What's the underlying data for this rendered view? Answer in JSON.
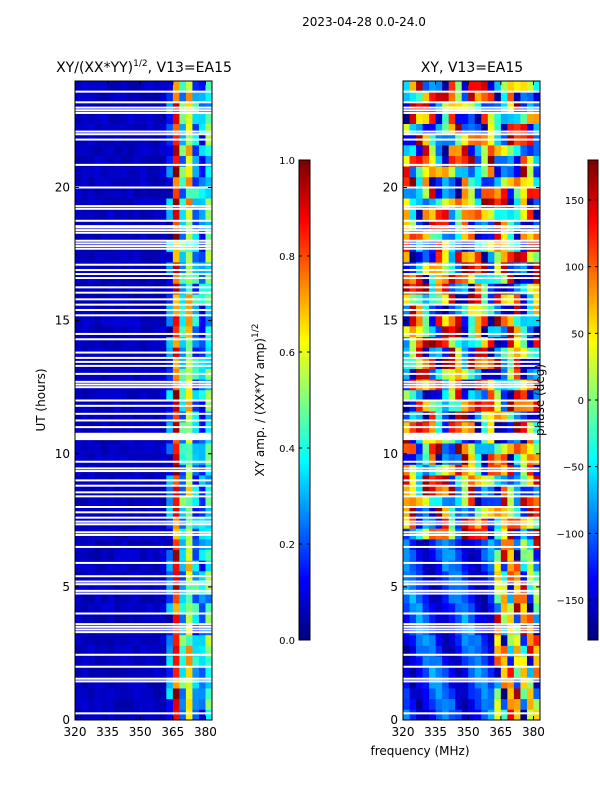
{
  "suptitle": "2023-04-28 0.0-24.0",
  "chart_data": [
    {
      "type": "heatmap",
      "title": "XY/(XX*YY)",
      "title_exponent": "1/2",
      "title_suffix": ", V13=EA15",
      "xlabel": "",
      "ylabel": "UT (hours)",
      "xlim": [
        320,
        383
      ],
      "ylim": [
        0,
        24
      ],
      "xticks": [
        "320",
        "335",
        "350",
        "365",
        "380"
      ],
      "xtick_values": [
        320,
        335,
        350,
        365,
        380
      ],
      "yticks": [
        "0",
        "5",
        "10",
        "15",
        "20"
      ],
      "ytick_values": [
        0,
        5,
        10,
        15,
        20
      ],
      "colorscale": "jet",
      "colorbar": {
        "label": "XY amp. / (XX*YY amp)",
        "label_exponent": "1/2",
        "range": [
          0.0,
          1.0
        ],
        "ticks": [
          "0.0",
          "0.2",
          "0.4",
          "0.6",
          "0.8",
          "1.0"
        ],
        "tick_values": [
          0.0,
          0.2,
          0.4,
          0.6,
          0.8,
          1.0
        ]
      },
      "description": "Mostly low amplitude (~0.05) below 361 MHz; bright striped columns (0.3-0.8) between 362 and 381 MHz"
    },
    {
      "type": "heatmap",
      "title": "XY, V13=EA15",
      "xlabel": "frequency (MHz)",
      "ylabel": "",
      "xlim": [
        320,
        383
      ],
      "ylim": [
        0,
        24
      ],
      "xticks": [
        "320",
        "335",
        "350",
        "365",
        "380"
      ],
      "xtick_values": [
        320,
        335,
        350,
        365,
        380
      ],
      "yticks": [
        "0",
        "5",
        "10",
        "15",
        "20"
      ],
      "ytick_values": [
        0,
        5,
        10,
        15,
        20
      ],
      "colorscale": "jet",
      "colorbar": {
        "label": "phase (deg)",
        "range": [
          -180,
          180
        ],
        "ticks": [
          "−150",
          "−100",
          "−50",
          "0",
          "50",
          "100",
          "150"
        ],
        "tick_values": [
          -150,
          -100,
          -50,
          0,
          50,
          100,
          150
        ]
      },
      "description": "Phase wraps across full range; mostly blue (-120 deg) in early hours, turbulent phase patterns later in the day"
    }
  ],
  "flagged_hours": [
    0.25,
    1.45,
    1.55,
    2.0,
    2.45,
    3.3,
    3.4,
    3.5,
    3.6,
    4.0,
    4.75,
    4.85,
    5.1,
    5.2,
    5.4,
    5.9,
    6.5,
    6.95,
    7.05,
    7.35,
    7.45,
    7.6,
    7.8,
    8.0,
    8.4,
    8.55,
    8.8,
    9.0,
    9.35,
    9.45,
    9.7,
    10.55,
    10.6,
    10.65,
    10.7,
    10.75,
    11.0,
    11.25,
    11.5,
    11.8,
    12.0,
    12.5,
    12.6,
    12.7,
    13.0,
    13.3,
    13.45,
    13.6,
    13.8,
    14.3,
    14.5,
    15.2,
    15.4,
    15.6,
    15.8,
    16.05,
    16.25,
    16.6,
    16.75,
    16.9,
    17.1,
    17.7,
    17.8,
    17.9,
    18.0,
    18.3,
    18.4,
    18.5,
    18.55,
    18.75,
    19.2,
    19.3,
    20.0,
    20.85,
    21.8,
    22.0,
    22.1,
    22.8,
    22.9,
    23.0,
    23.2,
    23.6
  ]
}
